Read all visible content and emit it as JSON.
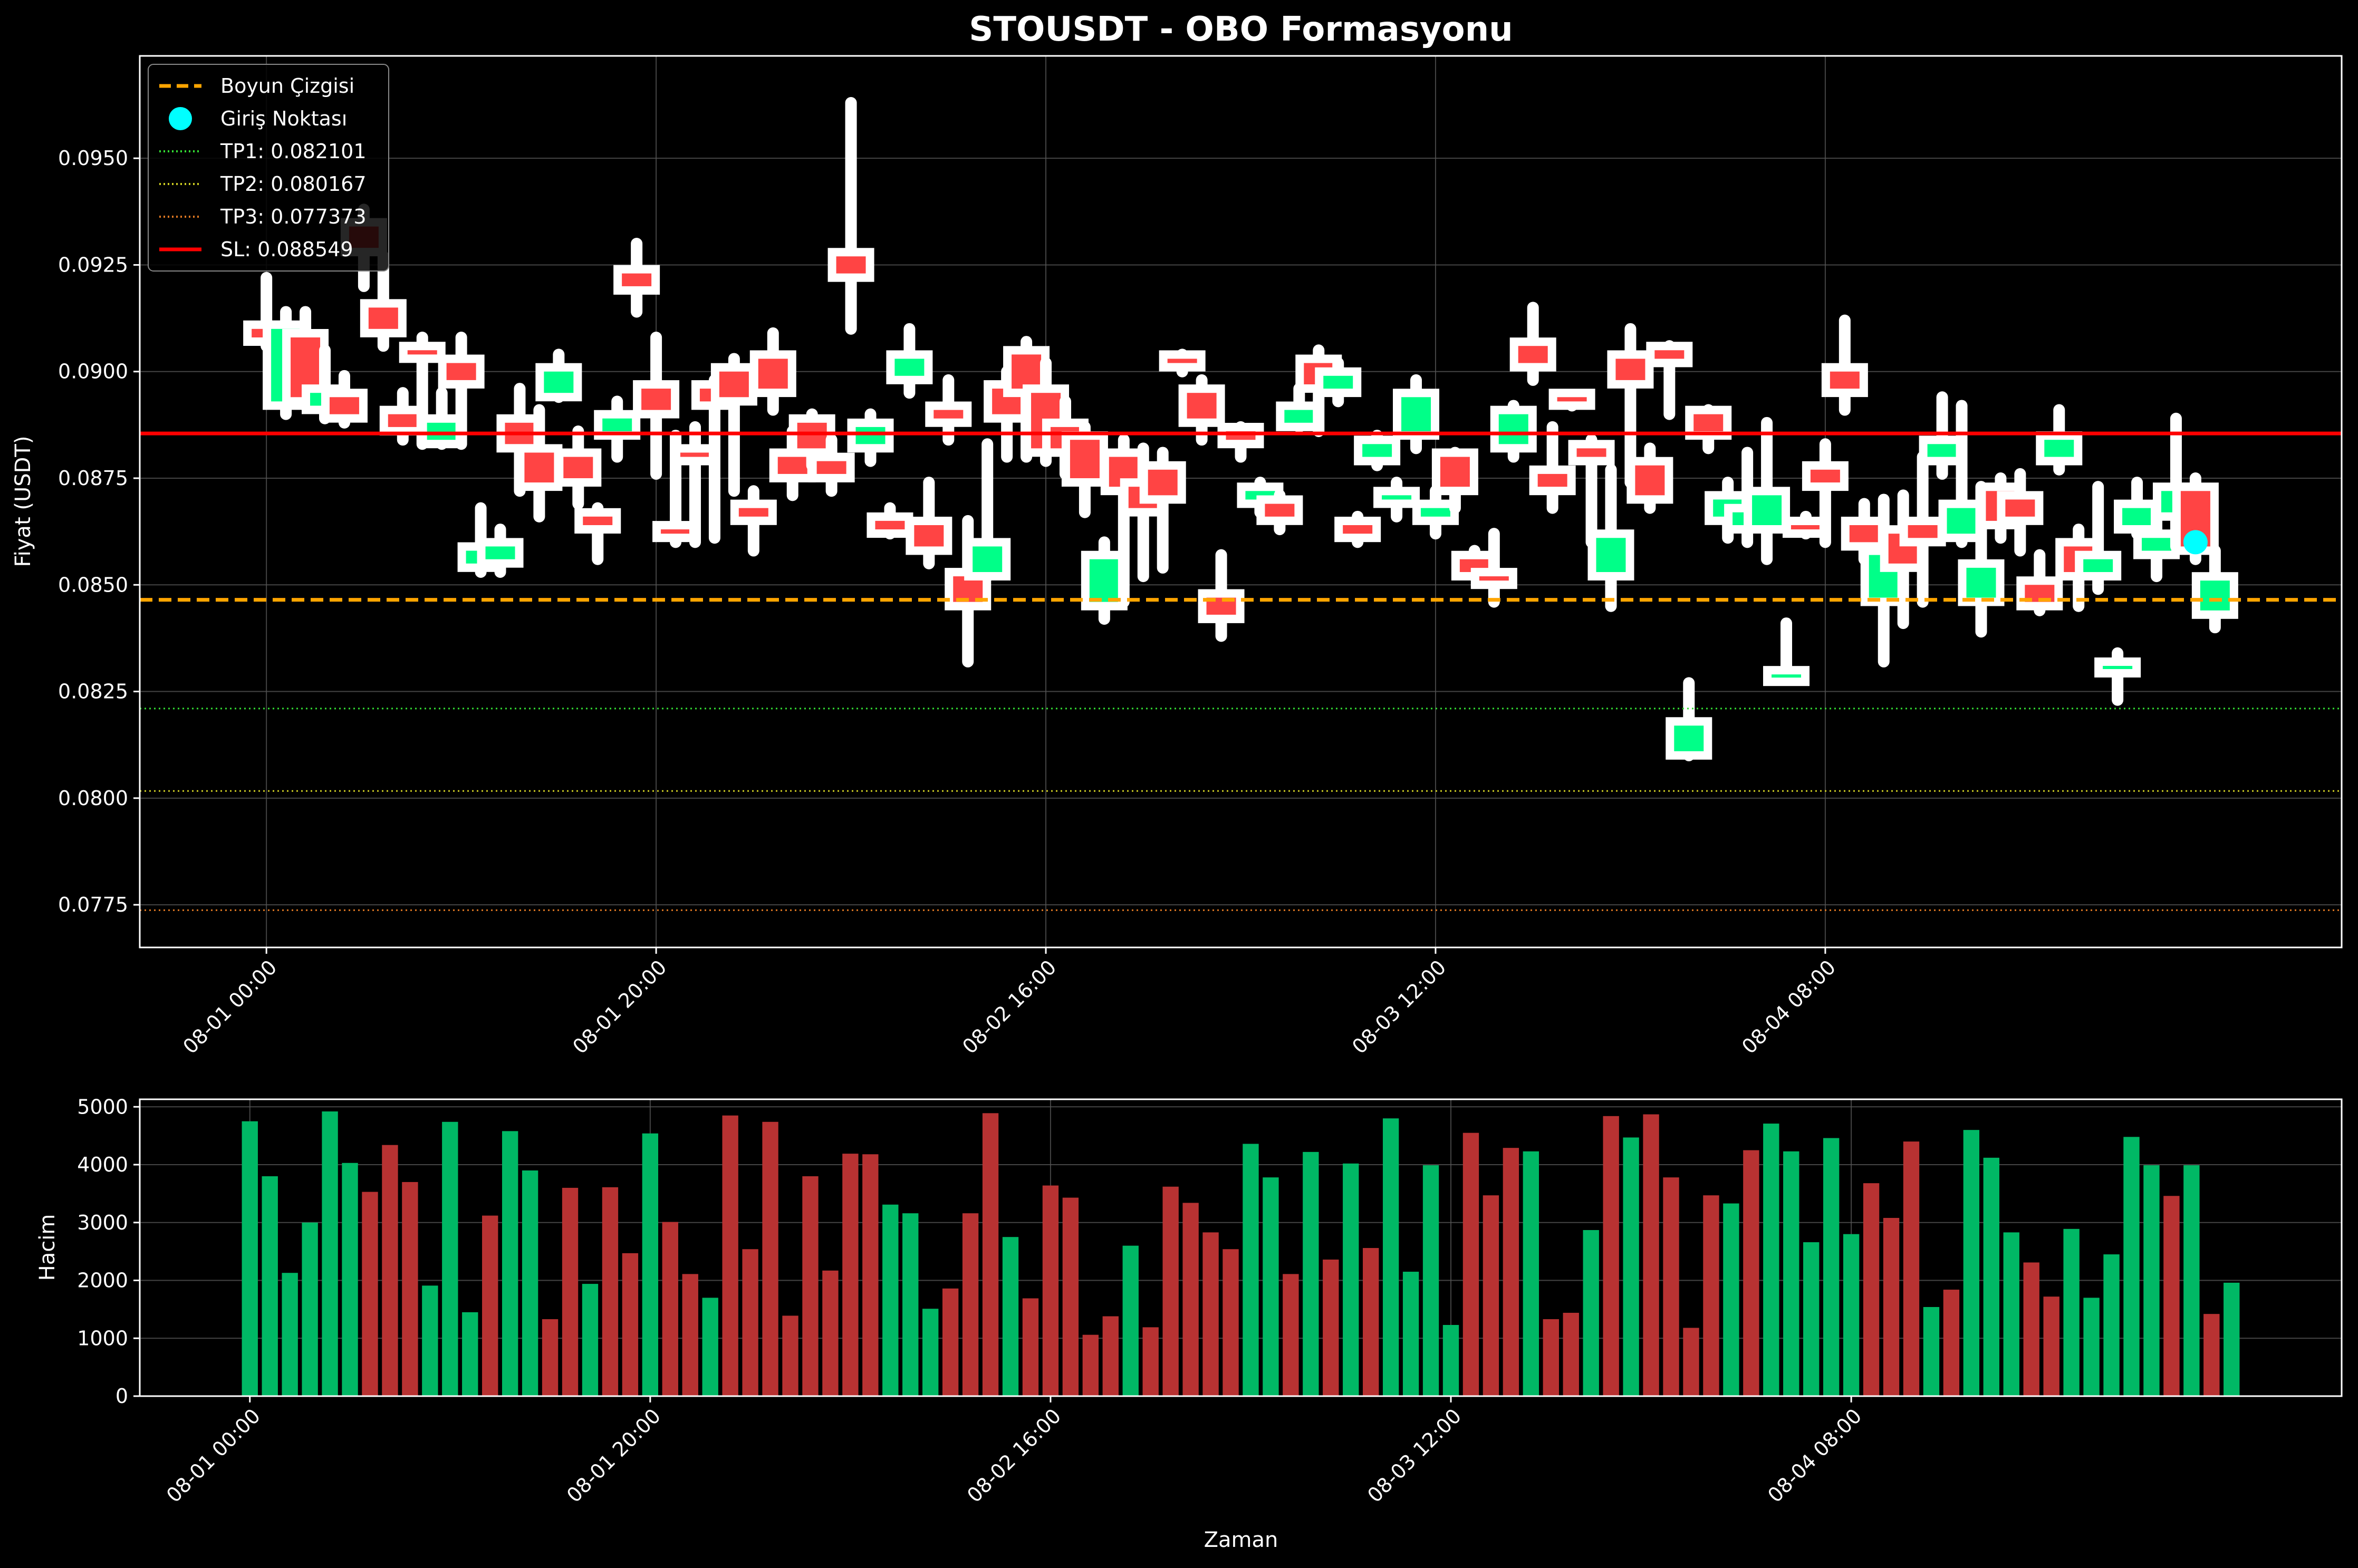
{
  "colors": {
    "background": "#000000",
    "axes": "#ffffff",
    "grid": "#555555",
    "up": "#00ff88",
    "down": "#ff4444",
    "wick": "#ffffff",
    "neckline": "#ffa500",
    "entry": "#00ffff",
    "tp1": "#33dd33",
    "tp2": "#cccc22",
    "tp3": "#dd7722",
    "sl": "#ff0000",
    "vol_up": "#00b865",
    "vol_down": "#b83232"
  },
  "chart_data": [
    {
      "type": "candlestick",
      "title": "STOUSDT - OBO Formasyonu",
      "ylabel": "Fiyat (USDT)",
      "ylim": [
        0.0765,
        0.0974
      ],
      "xlim": [
        -6.5,
        106.5
      ],
      "yticks": [
        "0.0775",
        "0.0800",
        "0.0825",
        "0.0850",
        "0.0875",
        "0.0900",
        "0.0925",
        "0.0950"
      ],
      "yticks_values": [
        0.0775,
        0.08,
        0.0825,
        0.085,
        0.0875,
        0.09,
        0.0925,
        0.095
      ],
      "xticks": [
        "08-01 00:00",
        "08-01 20:00",
        "08-02 16:00",
        "08-03 12:00",
        "08-04 08:00"
      ],
      "xticks_index": [
        0,
        20,
        40,
        60,
        80
      ],
      "legend": {
        "position": "top-left",
        "entries": [
          "Boyun Çizgisi",
          "Giriş Noktası",
          "TP1: 0.082101",
          "TP2: 0.080167",
          "TP3: 0.077373",
          "SL: 0.088549"
        ]
      },
      "levels": {
        "neckline": 0.08465,
        "tp1": 0.082101,
        "tp2": 0.080167,
        "tp3": 0.077373,
        "sl": 0.088549
      },
      "entry_point": {
        "x": 99,
        "y": 0.086
      },
      "candles": [
        [
          0.091,
          0.0908,
          0.0922,
          0.0906
        ],
        [
          0.0893,
          0.091,
          0.0914,
          0.089
        ],
        [
          0.0908,
          0.0894,
          0.0914,
          0.0892
        ],
        [
          0.0892,
          0.0895,
          0.0905,
          0.0889
        ],
        [
          0.0894,
          0.089,
          0.0899,
          0.0888
        ],
        [
          0.0934,
          0.0929,
          0.0938,
          0.092
        ],
        [
          0.0915,
          0.091,
          0.0927,
          0.0906
        ],
        [
          0.089,
          0.0887,
          0.0895,
          0.0884
        ],
        [
          0.0905,
          0.0904,
          0.0908,
          0.0883
        ],
        [
          0.0884,
          0.0888,
          0.0895,
          0.0883
        ],
        [
          0.0902,
          0.0898,
          0.0908,
          0.0883
        ],
        [
          0.0855,
          0.0858,
          0.0868,
          0.0853
        ],
        [
          0.0856,
          0.0859,
          0.0863,
          0.0853
        ],
        [
          0.0888,
          0.0883,
          0.0896,
          0.0872
        ],
        [
          0.0881,
          0.0874,
          0.0891,
          0.0866
        ],
        [
          0.0895,
          0.09,
          0.0904,
          0.0894
        ],
        [
          0.088,
          0.0875,
          0.0886,
          0.0869
        ],
        [
          0.0866,
          0.0864,
          0.0868,
          0.0856
        ],
        [
          0.0886,
          0.0889,
          0.0893,
          0.088
        ],
        [
          0.0923,
          0.092,
          0.093,
          0.0914
        ],
        [
          0.0896,
          0.0891,
          0.0908,
          0.0876
        ],
        [
          0.0863,
          0.0862,
          0.0885,
          0.086
        ],
        [
          0.0881,
          0.088,
          0.0887,
          0.086
        ],
        [
          0.0896,
          0.0893,
          0.0898,
          0.0861
        ],
        [
          0.09,
          0.0894,
          0.0903,
          0.0872
        ],
        [
          0.0868,
          0.0866,
          0.0872,
          0.0858
        ],
        [
          0.0903,
          0.0896,
          0.0909,
          0.0891
        ],
        [
          0.088,
          0.0876,
          0.0886,
          0.0871
        ],
        [
          0.0888,
          0.0882,
          0.089,
          0.0878
        ],
        [
          0.0879,
          0.0876,
          0.0884,
          0.0872
        ],
        [
          0.0927,
          0.0923,
          0.0963,
          0.091
        ],
        [
          0.0883,
          0.0887,
          0.089,
          0.0879
        ],
        [
          0.0865,
          0.0863,
          0.0868,
          0.0862
        ],
        [
          0.0899,
          0.0903,
          0.091,
          0.0895
        ],
        [
          0.0864,
          0.0859,
          0.0874,
          0.0855
        ],
        [
          0.0891,
          0.0889,
          0.0898,
          0.0884
        ],
        [
          0.0852,
          0.0846,
          0.0865,
          0.0832
        ],
        [
          0.0853,
          0.0859,
          0.0883,
          0.0852
        ],
        [
          0.0896,
          0.089,
          0.09,
          0.088
        ],
        [
          0.0904,
          0.0896,
          0.0907,
          0.088
        ],
        [
          0.0895,
          0.0882,
          0.0902,
          0.0879
        ],
        [
          0.0887,
          0.0882,
          0.0893,
          0.0876
        ],
        [
          0.0884,
          0.0875,
          0.0887,
          0.0867
        ],
        [
          0.0846,
          0.0856,
          0.086,
          0.0842
        ],
        [
          0.088,
          0.0873,
          0.0884,
          0.0846
        ],
        [
          0.0873,
          0.0868,
          0.0882,
          0.0852
        ],
        [
          0.0877,
          0.0871,
          0.0881,
          0.0854
        ],
        [
          0.0903,
          0.0902,
          0.0904,
          0.09
        ],
        [
          0.0895,
          0.0889,
          0.0898,
          0.0884
        ],
        [
          0.0847,
          0.0843,
          0.0857,
          0.0838
        ],
        [
          0.0886,
          0.0884,
          0.0887,
          0.088
        ],
        [
          0.087,
          0.0872,
          0.0874,
          0.0867
        ],
        [
          0.0869,
          0.0866,
          0.0871,
          0.0863
        ],
        [
          0.0888,
          0.0891,
          0.0896,
          0.0887
        ],
        [
          0.0902,
          0.0897,
          0.0905,
          0.0886
        ],
        [
          0.0896,
          0.0899,
          0.0902,
          0.0893
        ],
        [
          0.0864,
          0.0862,
          0.0866,
          0.086
        ],
        [
          0.088,
          0.0883,
          0.0885,
          0.0878
        ],
        [
          0.087,
          0.0871,
          0.0874,
          0.0866
        ],
        [
          0.0886,
          0.0894,
          0.0898,
          0.0882
        ],
        [
          0.0866,
          0.0868,
          0.0872,
          0.0862
        ],
        [
          0.088,
          0.0873,
          0.0881,
          0.0868
        ],
        [
          0.0856,
          0.0853,
          0.0858,
          0.0852
        ],
        [
          0.0852,
          0.0851,
          0.0862,
          0.0846
        ],
        [
          0.0883,
          0.089,
          0.0892,
          0.088
        ],
        [
          0.0906,
          0.0902,
          0.0915,
          0.0898
        ],
        [
          0.0876,
          0.0873,
          0.0887,
          0.0868
        ],
        [
          0.0894,
          0.0893,
          0.0894,
          0.0892
        ],
        [
          0.0882,
          0.088,
          0.0884,
          0.086
        ],
        [
          0.0853,
          0.0861,
          0.0877,
          0.0845
        ],
        [
          0.0903,
          0.0898,
          0.091,
          0.0874
        ],
        [
          0.0878,
          0.0871,
          0.0882,
          0.0868
        ],
        [
          0.0905,
          0.0903,
          0.0906,
          0.089
        ],
        [
          0.0811,
          0.0817,
          0.0827,
          0.081
        ],
        [
          0.089,
          0.0886,
          0.0891,
          0.0882
        ],
        [
          0.0866,
          0.087,
          0.0874,
          0.0861
        ],
        [
          0.0864,
          0.0867,
          0.0881,
          0.086
        ],
        [
          0.0864,
          0.0871,
          0.0888,
          0.0856
        ],
        [
          0.0829,
          0.0829,
          0.0841,
          0.0828
        ],
        [
          0.0864,
          0.0863,
          0.0866,
          0.0862
        ],
        [
          0.0877,
          0.0874,
          0.0883,
          0.086
        ],
        [
          0.09,
          0.0896,
          0.0912,
          0.0891
        ],
        [
          0.0864,
          0.086,
          0.0869,
          0.0856
        ],
        [
          0.0847,
          0.0857,
          0.087,
          0.0832
        ],
        [
          0.0862,
          0.0855,
          0.0871,
          0.0841
        ],
        [
          0.0864,
          0.0861,
          0.088,
          0.0846
        ],
        [
          0.088,
          0.0883,
          0.0894,
          0.0876
        ],
        [
          0.0862,
          0.0868,
          0.0892,
          0.086
        ],
        [
          0.0847,
          0.0854,
          0.0873,
          0.0839
        ],
        [
          0.0872,
          0.0865,
          0.0875,
          0.0861
        ],
        [
          0.087,
          0.0866,
          0.0876,
          0.0858
        ],
        [
          0.085,
          0.0846,
          0.0857,
          0.0844
        ],
        [
          0.088,
          0.0884,
          0.0891,
          0.0877
        ],
        [
          0.0859,
          0.0853,
          0.0863,
          0.0845
        ],
        [
          0.0853,
          0.0856,
          0.0873,
          0.0849
        ],
        [
          0.0831,
          0.0831,
          0.0834,
          0.0823
        ],
        [
          0.0864,
          0.0868,
          0.0874,
          0.0862
        ],
        [
          0.0858,
          0.0861,
          0.0868,
          0.0852
        ],
        [
          0.0867,
          0.0872,
          0.0889,
          0.0859
        ],
        [
          0.0872,
          0.0859,
          0.0875,
          0.0856
        ],
        [
          0.0844,
          0.0851,
          0.0858,
          0.084
        ]
      ]
    },
    {
      "type": "bar",
      "ylabel": "Hacim",
      "xlabel": "Zaman",
      "ylim": [
        0,
        5130
      ],
      "xlim": [
        -5.5,
        104.5
      ],
      "yticks": [
        "0",
        "1000",
        "2000",
        "3000",
        "4000",
        "5000"
      ],
      "yticks_values": [
        0,
        1000,
        2000,
        3000,
        4000,
        5000
      ],
      "xticks": [
        "08-01 00:00",
        "08-01 20:00",
        "08-02 16:00",
        "08-03 12:00",
        "08-04 08:00"
      ],
      "xticks_index": [
        0,
        20,
        40,
        60,
        80
      ],
      "values": [
        4750,
        3800,
        2130,
        3000,
        4920,
        4030,
        3530,
        4340,
        3700,
        1910,
        4740,
        1450,
        3120,
        4580,
        3900,
        1330,
        3600,
        1940,
        3610,
        2470,
        4540,
        3010,
        2110,
        1700,
        4850,
        2540,
        4740,
        1390,
        3800,
        2170,
        4190,
        4180,
        3310,
        3160,
        1510,
        1860,
        3160,
        4890,
        2750,
        1690,
        3640,
        3430,
        1060,
        1380,
        2600,
        1190,
        3620,
        3340,
        2830,
        2540,
        4360,
        3780,
        2110,
        4220,
        2360,
        4020,
        2560,
        4800,
        2150,
        3990,
        1230,
        4550,
        3470,
        4290,
        4230,
        1330,
        1440,
        2870,
        4840,
        4470,
        4870,
        3780,
        1180,
        3470,
        3330,
        4250,
        4710,
        4230,
        2660,
        4460,
        2800,
        3680,
        3080,
        4400,
        1540,
        1840,
        4600,
        4120,
        2830,
        2310,
        1720,
        2890,
        1700,
        2450,
        4480,
        3990,
        3460,
        3990,
        1420,
        1960
      ],
      "colors_up": [
        1,
        1,
        1,
        1,
        1,
        1,
        0,
        0,
        0,
        1,
        1,
        1,
        0,
        1,
        1,
        0,
        0,
        1,
        0,
        0,
        1,
        0,
        0,
        1,
        0,
        0,
        0,
        0,
        0,
        0,
        0,
        0,
        1,
        1,
        1,
        0,
        0,
        0,
        1,
        0,
        0,
        0,
        0,
        0,
        1,
        0,
        0,
        0,
        0,
        0,
        1,
        1,
        0,
        1,
        0,
        1,
        0,
        1,
        1,
        1,
        1,
        0,
        0,
        0,
        1,
        0,
        0,
        1,
        0,
        1,
        0,
        0,
        0,
        0,
        1,
        0,
        1,
        1,
        1,
        1,
        1,
        0,
        0,
        0,
        1,
        0,
        1,
        1,
        1,
        0,
        0,
        1,
        1,
        1,
        1,
        1,
        0,
        1,
        0,
        1
      ]
    }
  ]
}
